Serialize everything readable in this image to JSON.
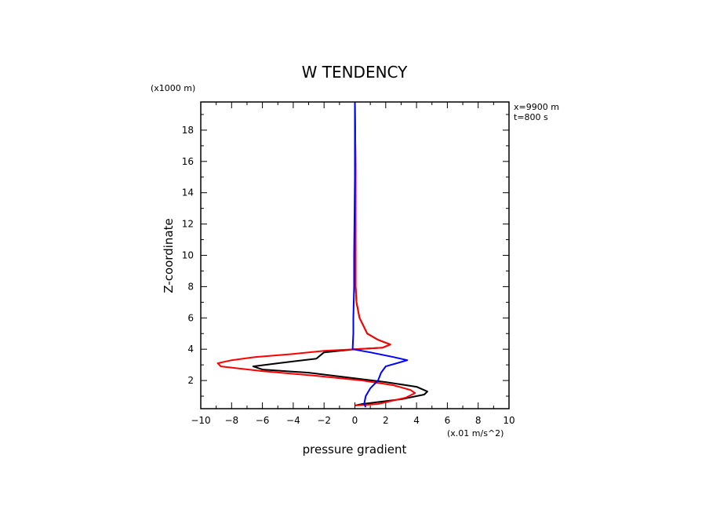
{
  "chart_data": {
    "type": "line",
    "title": "W TENDENCY",
    "xlabel": "pressure gradient",
    "ylabel": "Z-coordinate",
    "x_unit": "(x.01 m/s^2)",
    "y_unit": "(x1000 m)",
    "xlim": [
      -10,
      10
    ],
    "ylim": [
      0.2,
      19.8
    ],
    "xticks": [
      -10,
      -8,
      -6,
      -4,
      -2,
      0,
      2,
      4,
      6,
      8,
      10
    ],
    "yticks": [
      2,
      4,
      6,
      8,
      10,
      12,
      14,
      16,
      18
    ],
    "annotations": [
      "x=9900 m",
      "t=800 s"
    ],
    "grid": false,
    "series": [
      {
        "color": "#000000",
        "points": [
          [
            0.0,
            19.8
          ],
          [
            0.05,
            15.0
          ],
          [
            0.05,
            10.0
          ],
          [
            0.05,
            8.0
          ],
          [
            0.1,
            7.0
          ],
          [
            0.3,
            6.0
          ],
          [
            0.8,
            5.0
          ],
          [
            1.5,
            4.6
          ],
          [
            2.3,
            4.3
          ],
          [
            1.8,
            4.1
          ],
          [
            0.0,
            4.0
          ],
          [
            -2.0,
            3.8
          ],
          [
            -2.5,
            3.4
          ],
          [
            -5.0,
            3.1
          ],
          [
            -6.6,
            2.9
          ],
          [
            -6.0,
            2.7
          ],
          [
            -3.0,
            2.5
          ],
          [
            -0.5,
            2.2
          ],
          [
            2.0,
            1.9
          ],
          [
            4.0,
            1.6
          ],
          [
            4.7,
            1.3
          ],
          [
            4.5,
            1.1
          ],
          [
            3.0,
            0.8
          ],
          [
            0.5,
            0.5
          ],
          [
            0.0,
            0.4
          ]
        ]
      },
      {
        "color": "#ff0000",
        "points": [
          [
            0.0,
            19.8
          ],
          [
            0.05,
            15.0
          ],
          [
            0.05,
            10.0
          ],
          [
            0.05,
            8.0
          ],
          [
            0.1,
            7.0
          ],
          [
            0.3,
            6.0
          ],
          [
            0.8,
            5.0
          ],
          [
            1.5,
            4.6
          ],
          [
            2.3,
            4.3
          ],
          [
            1.8,
            4.1
          ],
          [
            0.0,
            4.0
          ],
          [
            -2.0,
            3.9
          ],
          [
            -4.0,
            3.7
          ],
          [
            -6.5,
            3.5
          ],
          [
            -8.0,
            3.3
          ],
          [
            -8.9,
            3.1
          ],
          [
            -8.7,
            2.9
          ],
          [
            -6.0,
            2.6
          ],
          [
            -2.5,
            2.3
          ],
          [
            0.5,
            2.0
          ],
          [
            2.5,
            1.7
          ],
          [
            3.6,
            1.4
          ],
          [
            3.9,
            1.2
          ],
          [
            3.3,
            0.9
          ],
          [
            1.5,
            0.5
          ],
          [
            0.0,
            0.4
          ]
        ]
      },
      {
        "color": "#0000ff",
        "points": [
          [
            0.0,
            19.8
          ],
          [
            0.0,
            15.0
          ],
          [
            -0.05,
            10.0
          ],
          [
            -0.05,
            8.0
          ],
          [
            -0.1,
            6.0
          ],
          [
            -0.1,
            5.0
          ],
          [
            -0.15,
            4.0
          ],
          [
            1.0,
            3.8
          ],
          [
            2.5,
            3.5
          ],
          [
            3.4,
            3.3
          ],
          [
            2.0,
            2.9
          ],
          [
            1.7,
            2.5
          ],
          [
            1.5,
            2.0
          ],
          [
            1.0,
            1.5
          ],
          [
            0.7,
            1.0
          ],
          [
            0.6,
            0.5
          ],
          [
            0.7,
            0.3
          ]
        ]
      }
    ]
  }
}
